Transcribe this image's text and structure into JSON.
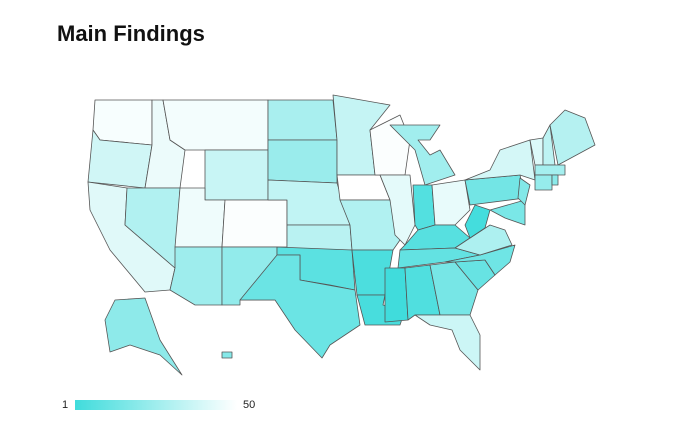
{
  "chart_data": {
    "type": "choropleth",
    "title": "Main Findings",
    "scale": {
      "min": 1,
      "max": 50
    },
    "colors": [
      "#40dcdc",
      "#ffffff"
    ],
    "values": [
      48,
      38,
      42,
      45,
      30,
      47,
      36,
      46,
      49,
      25,
      22,
      28,
      24,
      34,
      32,
      8,
      12,
      35,
      50,
      30,
      4,
      3,
      49,
      43,
      26,
      6,
      44,
      7,
      10,
      1,
      5,
      15,
      37,
      11,
      13,
      29,
      2,
      14,
      39,
      16,
      18,
      41,
      33,
      31,
      27,
      23,
      20,
      21,
      19
    ]
  }
}
